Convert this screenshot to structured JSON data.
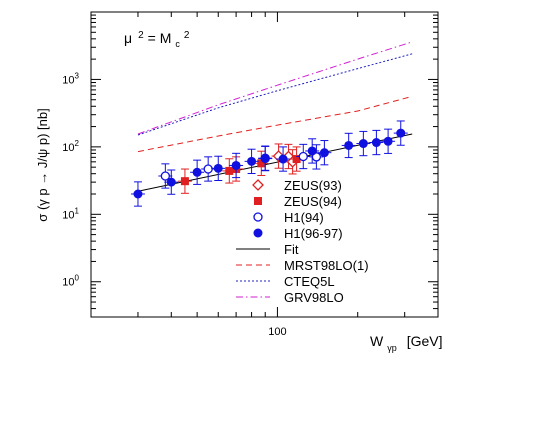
{
  "chart_data": {
    "type": "scatter",
    "title": "",
    "annotation": {
      "mu": "μ",
      "mu_exp": "2",
      "eq": "= M",
      "c_sub": "c",
      "c_exp": "2"
    },
    "xlabel": {
      "main": "W",
      "sub": "γp",
      "unit": "[GeV]"
    },
    "ylabel": "σ (γ p → J/ψ p) [nb]",
    "x_scale": "log",
    "y_scale": "log",
    "xlim": [
      20,
      400
    ],
    "ylim": [
      0.3,
      10000
    ],
    "x_ticks": [
      {
        "value": 100,
        "label": "100"
      }
    ],
    "y_ticks": [
      {
        "value": 1,
        "label": "10",
        "exp": "0"
      },
      {
        "value": 10,
        "label": "10",
        "exp": "1"
      },
      {
        "value": 100,
        "label": "10",
        "exp": "2"
      },
      {
        "value": 1000,
        "label": "10",
        "exp": "3"
      }
    ],
    "grid": false,
    "legend_position": "bottom-right",
    "series": [
      {
        "name": "ZEUS(93)",
        "marker": "open-diamond",
        "color": "#e02020",
        "points": [
          {
            "x": 101,
            "y": 73
          },
          {
            "x": 110,
            "y": 72
          },
          {
            "x": 114,
            "y": 60
          }
        ]
      },
      {
        "name": "ZEUS(94)",
        "marker": "filled-square",
        "color": "#e02020",
        "points": [
          {
            "x": 45,
            "y": 31
          },
          {
            "x": 66,
            "y": 44
          },
          {
            "x": 70,
            "y": 47
          },
          {
            "x": 87,
            "y": 57
          },
          {
            "x": 118,
            "y": 66
          }
        ]
      },
      {
        "name": "H1(94)",
        "marker": "open-circle",
        "color": "#1010e0",
        "points": [
          {
            "x": 38,
            "y": 37
          },
          {
            "x": 55,
            "y": 47
          },
          {
            "x": 90,
            "y": 68
          },
          {
            "x": 125,
            "y": 72
          },
          {
            "x": 140,
            "y": 71
          }
        ]
      },
      {
        "name": "H1(96-97)",
        "marker": "filled-circle",
        "color": "#1010e0",
        "points": [
          {
            "x": 30,
            "y": 20
          },
          {
            "x": 40,
            "y": 30
          },
          {
            "x": 50,
            "y": 42
          },
          {
            "x": 60,
            "y": 48
          },
          {
            "x": 70,
            "y": 53
          },
          {
            "x": 80,
            "y": 61
          },
          {
            "x": 90,
            "y": 67
          },
          {
            "x": 105,
            "y": 66
          },
          {
            "x": 135,
            "y": 87
          },
          {
            "x": 150,
            "y": 82
          },
          {
            "x": 185,
            "y": 105
          },
          {
            "x": 210,
            "y": 112
          },
          {
            "x": 235,
            "y": 116
          },
          {
            "x": 260,
            "y": 121
          },
          {
            "x": 290,
            "y": 160
          }
        ]
      },
      {
        "name": "Fit",
        "line": "solid",
        "color": "#000000",
        "points": [
          {
            "x": 30,
            "y": 22
          },
          {
            "x": 320,
            "y": 155
          }
        ]
      },
      {
        "name": "MRST98LO(1)",
        "line": "dashed",
        "color": "#e02020",
        "points": [
          {
            "x": 30,
            "y": 85
          },
          {
            "x": 60,
            "y": 145
          },
          {
            "x": 100,
            "y": 210
          },
          {
            "x": 200,
            "y": 340
          },
          {
            "x": 320,
            "y": 560
          }
        ]
      },
      {
        "name": "CTEQ5L",
        "line": "dotted",
        "color": "#2020c0",
        "points": [
          {
            "x": 30,
            "y": 150
          },
          {
            "x": 60,
            "y": 380
          },
          {
            "x": 100,
            "y": 680
          },
          {
            "x": 200,
            "y": 1450
          },
          {
            "x": 320,
            "y": 2400
          }
        ]
      },
      {
        "name": "GRV98LO",
        "line": "dash-dot",
        "color": "#d020d0",
        "points": [
          {
            "x": 30,
            "y": 155
          },
          {
            "x": 60,
            "y": 420
          },
          {
            "x": 100,
            "y": 820
          },
          {
            "x": 200,
            "y": 2000
          },
          {
            "x": 320,
            "y": 3600
          }
        ]
      }
    ]
  }
}
